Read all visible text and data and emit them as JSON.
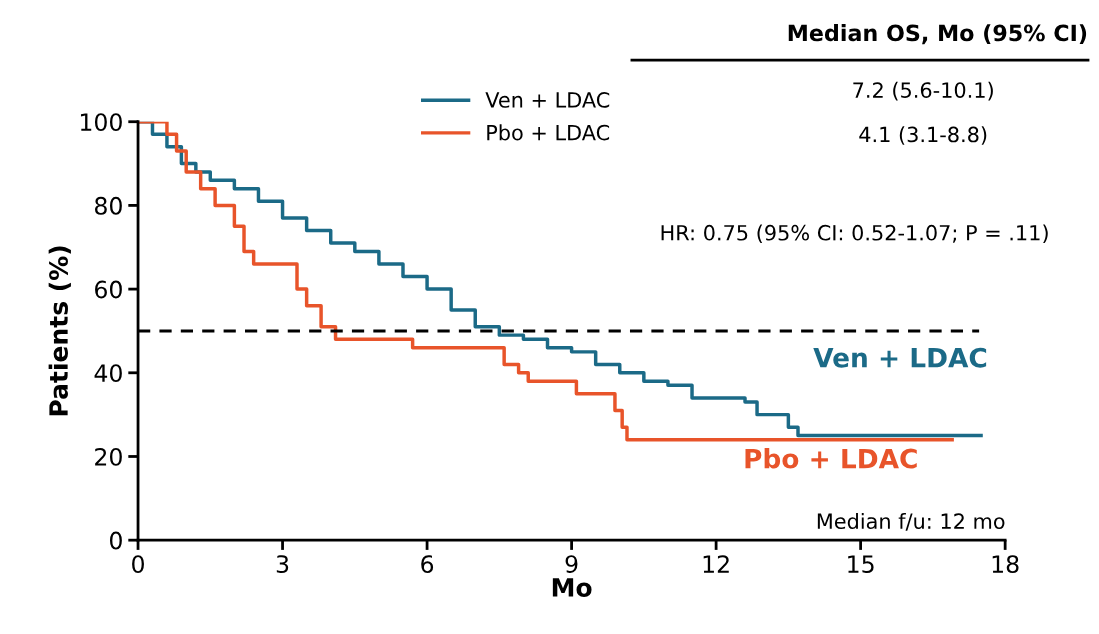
{
  "chart_data": {
    "type": "step",
    "xlabel": "Mo",
    "ylabel": "Patients (%)",
    "xlim": [
      0,
      18
    ],
    "xticks": [
      0,
      3,
      6,
      9,
      12,
      15,
      18
    ],
    "ylim": [
      0,
      100
    ],
    "yticks": [
      0,
      20,
      40,
      60,
      80,
      100
    ],
    "grid": false,
    "legend": "top",
    "line_style": "solid",
    "marker": "none",
    "series": [
      {
        "name": "Ven + LDAC",
        "color": "#1b6a87",
        "x": [
          0,
          0.3,
          0.6,
          0.9,
          1.2,
          1.5,
          2,
          2.5,
          3,
          3.5,
          4,
          4.5,
          5,
          5.5,
          6,
          6.5,
          7,
          7.5,
          8,
          8.5,
          9,
          9.5,
          10,
          10.5,
          11,
          11.5,
          12.6,
          12.85,
          13.5,
          13.7,
          17.5
        ],
        "values": [
          100,
          97,
          94,
          90,
          88,
          86,
          84,
          81,
          77,
          74,
          71,
          69,
          66,
          63,
          60,
          55,
          51,
          49,
          48,
          46,
          45,
          42,
          40,
          38,
          37,
          34,
          33,
          30,
          27,
          25,
          25
        ]
      },
      {
        "name": "Pbo + LDAC",
        "color": "#e8542a",
        "x": [
          0,
          0.6,
          0.8,
          1.0,
          1.3,
          1.6,
          2,
          2.2,
          2.4,
          3.1,
          3.3,
          3.5,
          3.8,
          4.1,
          5.7,
          7.4,
          7.6,
          7.9,
          8.1,
          8.9,
          9.1,
          9.7,
          9.9,
          10.05,
          10.15,
          16.9
        ],
        "values": [
          100,
          97,
          93,
          88,
          84,
          80,
          75,
          69,
          66,
          66,
          60,
          56,
          51,
          48,
          46,
          46,
          42,
          40,
          38,
          38,
          35,
          35,
          31,
          27,
          24,
          24
        ]
      }
    ],
    "ref_lines": [
      {
        "axis": "y",
        "value": 50,
        "label": null,
        "color": "#000000",
        "line_style": "dashed"
      }
    ],
    "annotations": [
      "Median OS, Mo (95% CI)",
      "7.2 (5.6-10.1)",
      "4.1 (3.1-8.8)",
      "HR: 0.75 (95% CI: 0.52-1.07; P = .11)",
      "Median f/u: 12 mo"
    ]
  }
}
